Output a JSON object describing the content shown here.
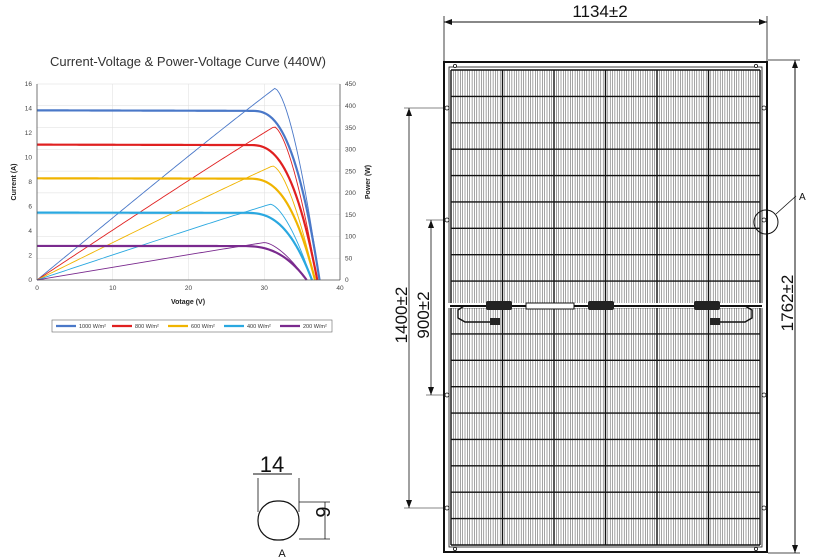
{
  "chart_data": {
    "type": "line",
    "title": "Current-Voltage & Power-Voltage Curve (440W)",
    "xlabel": "Votage (V)",
    "ylabel": "Current (A)",
    "y2label": "Power (W)",
    "xlim": [
      0,
      40
    ],
    "ylim": [
      0,
      16
    ],
    "y2lim": [
      0,
      450
    ],
    "xticks": [
      "0",
      "10",
      "20",
      "30",
      "40"
    ],
    "yticks": [
      "0",
      "2",
      "4",
      "6",
      "8",
      "10",
      "12",
      "14",
      "16"
    ],
    "y2ticks": [
      "0",
      "50",
      "100",
      "150",
      "200",
      "250",
      "300",
      "350",
      "400",
      "450"
    ],
    "grid": true,
    "legend_position": "bottom",
    "series": [
      {
        "name": "1000 W/m²",
        "color": "#4a78c8",
        "isc": 13.85,
        "voc": 37.3,
        "vmp": 31.4,
        "pmax": 440
      },
      {
        "name": "800 W/m²",
        "color": "#e02020",
        "isc": 11.05,
        "voc": 37.0,
        "vmp": 31.3,
        "pmax": 352
      },
      {
        "name": "600 W/m²",
        "color": "#f0b400",
        "isc": 8.3,
        "voc": 36.7,
        "vmp": 31.1,
        "pmax": 262
      },
      {
        "name": "400 W/m²",
        "color": "#2aa8e0",
        "isc": 5.5,
        "voc": 36.3,
        "vmp": 30.8,
        "pmax": 174
      },
      {
        "name": "200 W/m²",
        "color": "#7a2a8e",
        "isc": 2.78,
        "voc": 35.6,
        "vmp": 30.0,
        "pmax": 86
      }
    ]
  },
  "drawing": {
    "width_label": "1134±2",
    "height_label": "1762±2",
    "mount_hole_spacing_outer": "1400±2",
    "mount_hole_spacing_inner": "900±2",
    "detail_callout": "A",
    "detail_title": "A",
    "slot_width": "14",
    "slot_height": "9"
  }
}
